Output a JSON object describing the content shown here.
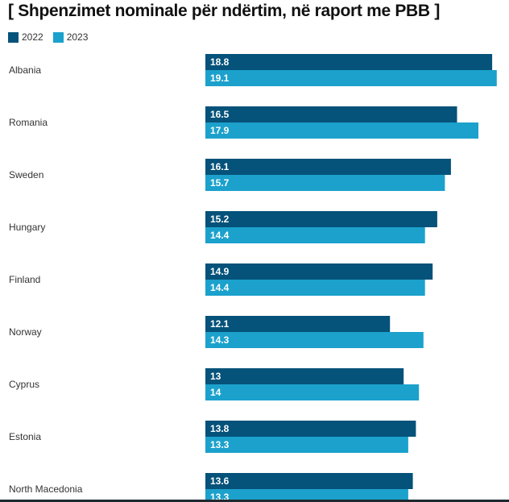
{
  "title": "[ Shpenzimet nominale për ndërtim, në raport me PBB ]",
  "colors": {
    "2022": "#05527a",
    "2023": "#1ba1cc"
  },
  "chart_data": {
    "type": "bar",
    "orientation": "horizontal",
    "title": "[ Shpenzimet nominale për ndërtim, në raport me PBB ]",
    "xlabel": "",
    "ylabel": "",
    "legend": "top-left",
    "grid": false,
    "categories": [
      "Albania",
      "Romania",
      "Sweden",
      "Hungary",
      "Finland",
      "Norway",
      "Cyprus",
      "Estonia",
      "North Macedonia"
    ],
    "series": [
      {
        "name": "2022",
        "color": "#05527a",
        "values": [
          18.8,
          16.5,
          16.1,
          15.2,
          14.9,
          12.1,
          13,
          13.8,
          13.6
        ],
        "labels": [
          "18.8",
          "16.5",
          "16.1",
          "15.2",
          "14.9",
          "12.1",
          "13",
          "13.8",
          "13.6"
        ]
      },
      {
        "name": "2023",
        "color": "#1ba1cc",
        "values": [
          19.1,
          17.9,
          15.7,
          14.4,
          14.4,
          14.3,
          14,
          13.3,
          13.3
        ],
        "labels": [
          "19.1",
          "17.9",
          "15.7",
          "14.4",
          "14.4",
          "14.3",
          "14",
          "13.3",
          "13.3"
        ]
      }
    ],
    "xlim": [
      0,
      19.1
    ]
  }
}
